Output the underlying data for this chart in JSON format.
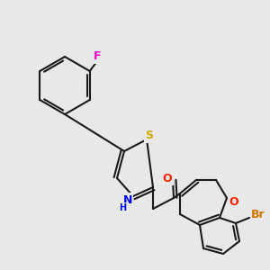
{
  "background_color": "#e8e8e8",
  "bond_color": "#1a1a1a",
  "atom_colors": {
    "F": "#ff00cc",
    "S": "#ccaa00",
    "N": "#0000ee",
    "H": "#0000ee",
    "O_amide": "#ff2200",
    "O_ring": "#ff2200",
    "Br": "#cc7700"
  },
  "scale": 1.0
}
